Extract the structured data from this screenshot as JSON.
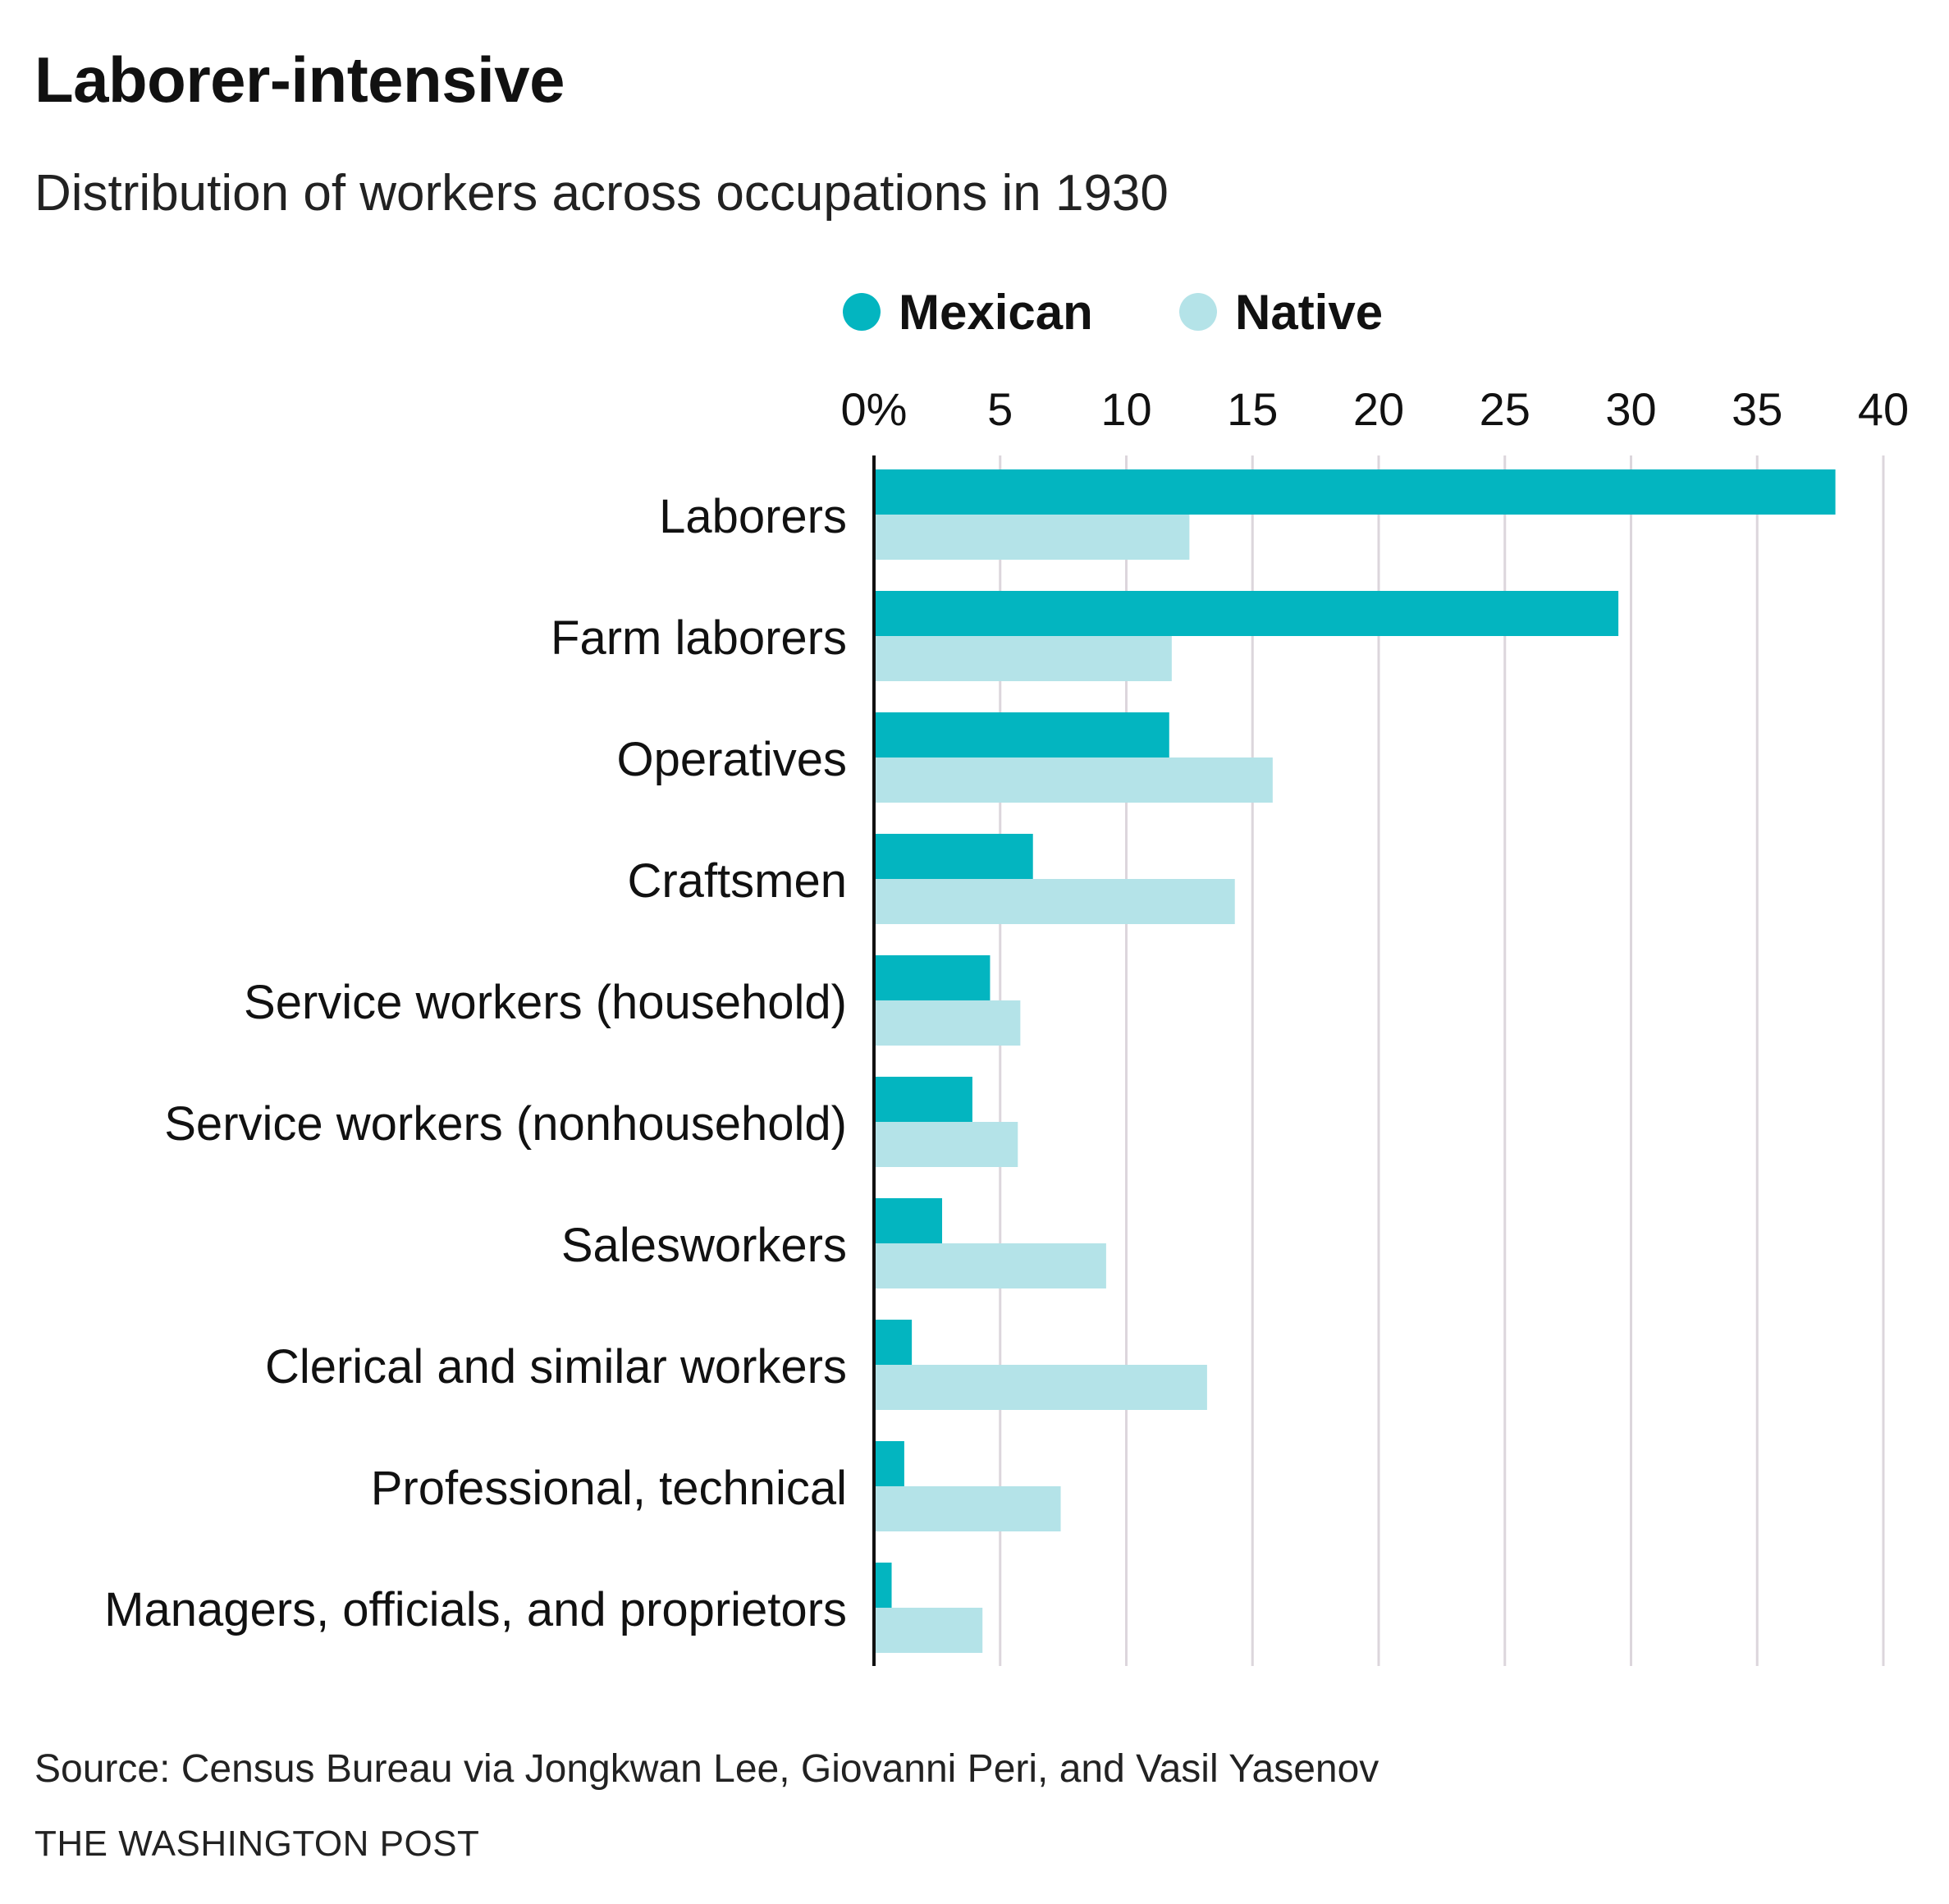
{
  "title": "Laborer-intensive",
  "subtitle": "Distribution of workers across occupations in 1930",
  "source": "Source: Census Bureau via Jongkwan Lee, Giovanni Peri, and Vasil Yasenov",
  "credit": "THE WASHINGTON POST",
  "chart_data": {
    "type": "bar",
    "orientation": "horizontal",
    "categories": [
      "Laborers",
      "Farm laborers",
      "Operatives",
      "Craftsmen",
      "Service workers (household)",
      "Service workers (nonhousehold)",
      "Salesworkers",
      "Clerical and similar workers",
      "Professional, technical",
      "Managers, officials, and proprietors"
    ],
    "series": [
      {
        "name": "Mexican",
        "color": "#03b5c0",
        "values": [
          38.1,
          29.5,
          11.7,
          6.3,
          4.6,
          3.9,
          2.7,
          1.5,
          1.2,
          0.7
        ]
      },
      {
        "name": "Native",
        "color": "#b4e3e8",
        "values": [
          12.5,
          11.8,
          15.8,
          14.3,
          5.8,
          5.7,
          9.2,
          13.2,
          7.4,
          4.3
        ]
      }
    ],
    "xlim": [
      0,
      40
    ],
    "xticks": [
      "0%",
      "5",
      "10",
      "15",
      "20",
      "25",
      "30",
      "35",
      "40"
    ],
    "grid": true,
    "legend_position": "top",
    "xlabel": "",
    "ylabel": ""
  }
}
